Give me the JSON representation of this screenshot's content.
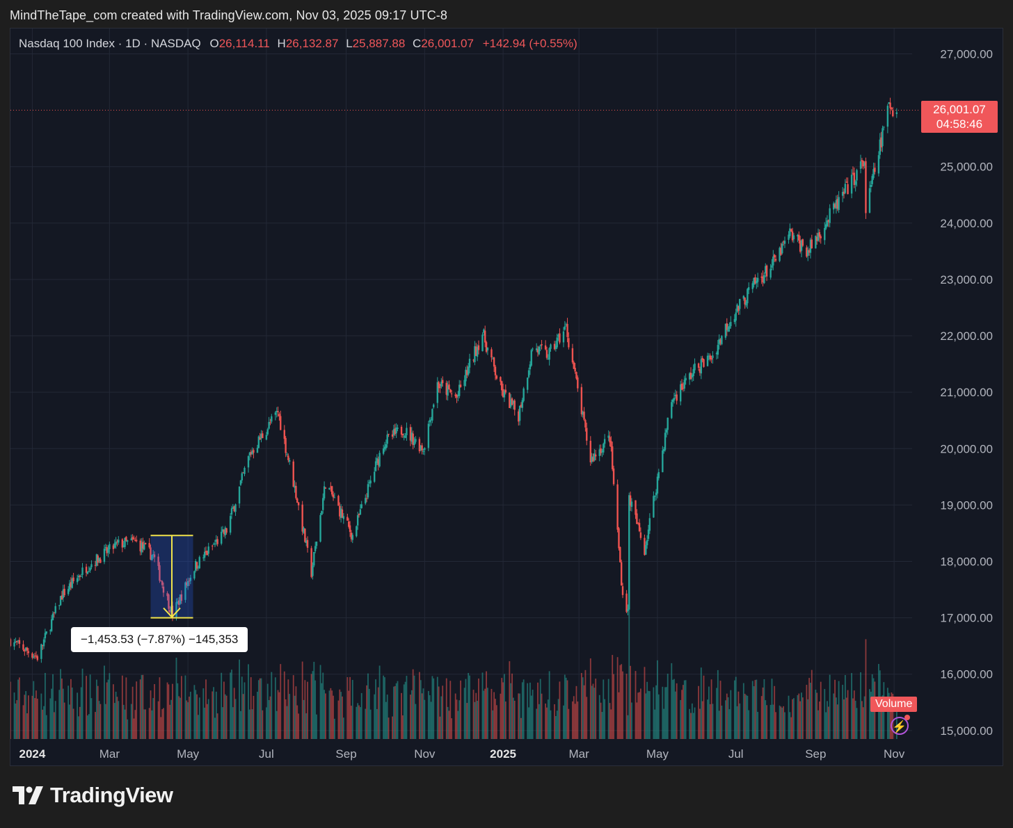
{
  "caption": "MindTheTape_com created with TradingView.com, Nov 03, 2025 09:17 UTC-8",
  "legend": {
    "symbol": "Nasdaq 100 Index · 1D · NASDAQ",
    "open_label": "O",
    "open": "26,114.11",
    "high_label": "H",
    "high": "26,132.87",
    "low_label": "L",
    "low": "25,887.88",
    "close_label": "C",
    "close": "26,001.07",
    "change": "+142.94 (+0.55%)"
  },
  "price_tag": {
    "price": "26,001.07",
    "countdown": "04:58:46"
  },
  "measure_label": "−1,453.53 (−7.87%) −145,353",
  "volume_tag": "Volume",
  "logo_text": "TradingView",
  "colors": {
    "up": "#26a69a",
    "down": "#ef5350",
    "background": "#141823",
    "measure": "#f2e44b"
  },
  "chart_data": {
    "type": "candlestick",
    "current_price": 26001.07,
    "y_ticks": [
      "27,000.00",
      "25,000.00",
      "24,000.00",
      "23,000.00",
      "22,000.00",
      "21,000.00",
      "20,000.00",
      "19,000.00",
      "18,000.00",
      "17,000.00",
      "16,000.00",
      "15,000.00"
    ],
    "y_values": [
      27000,
      25000,
      24000,
      23000,
      22000,
      21000,
      20000,
      19000,
      18000,
      17000,
      16000,
      15000
    ],
    "x_ticks": [
      {
        "label": "2024",
        "date": "2024-01-01",
        "bold": true
      },
      {
        "label": "Mar",
        "date": "2024-03-01",
        "bold": false
      },
      {
        "label": "May",
        "date": "2024-05-01",
        "bold": false
      },
      {
        "label": "Jul",
        "date": "2024-07-01",
        "bold": false
      },
      {
        "label": "Sep",
        "date": "2024-09-01",
        "bold": false
      },
      {
        "label": "Nov",
        "date": "2024-11-01",
        "bold": false
      },
      {
        "label": "2025",
        "date": "2025-01-01",
        "bold": true
      },
      {
        "label": "Mar",
        "date": "2025-03-01",
        "bold": false
      },
      {
        "label": "May",
        "date": "2025-05-01",
        "bold": false
      },
      {
        "label": "Jul",
        "date": "2025-07-01",
        "bold": false
      },
      {
        "label": "Sep",
        "date": "2025-09-01",
        "bold": false
      },
      {
        "label": "Nov",
        "date": "2025-11-01",
        "bold": false
      }
    ],
    "x_range": [
      "2023-12-15",
      "2025-11-15"
    ],
    "y_range": [
      14850,
      27450
    ],
    "path": [
      [
        "2023-12-15",
        16600
      ],
      [
        "2024-01-05",
        16300
      ],
      [
        "2024-01-24",
        17400
      ],
      [
        "2024-02-12",
        17900
      ],
      [
        "2024-03-07",
        18300
      ],
      [
        "2024-03-21",
        18350
      ],
      [
        "2024-04-04",
        18100
      ],
      [
        "2024-04-19",
        17050
      ],
      [
        "2024-05-06",
        17900
      ],
      [
        "2024-05-31",
        18550
      ],
      [
        "2024-06-18",
        19900
      ],
      [
        "2024-07-10",
        20650
      ],
      [
        "2024-07-24",
        19200
      ],
      [
        "2024-08-05",
        17800
      ],
      [
        "2024-08-16",
        19400
      ],
      [
        "2024-09-06",
        18450
      ],
      [
        "2024-09-30",
        20100
      ],
      [
        "2024-10-15",
        20350
      ],
      [
        "2024-10-31",
        20000
      ],
      [
        "2024-11-11",
        21150
      ],
      [
        "2024-11-26",
        20900
      ],
      [
        "2024-12-16",
        22050
      ],
      [
        "2024-12-31",
        21000
      ],
      [
        "2025-01-13",
        20600
      ],
      [
        "2025-01-24",
        21800
      ],
      [
        "2025-02-05",
        21650
      ],
      [
        "2025-02-19",
        22150
      ],
      [
        "2025-03-10",
        19800
      ],
      [
        "2025-03-25",
        20200
      ],
      [
        "2025-04-04",
        17400
      ],
      [
        "2025-04-08",
        17100
      ],
      [
        "2025-04-09",
        19150
      ],
      [
        "2025-04-21",
        18200
      ],
      [
        "2025-05-12",
        20850
      ],
      [
        "2025-05-30",
        21400
      ],
      [
        "2025-06-13",
        21650
      ],
      [
        "2025-06-24",
        22200
      ],
      [
        "2025-07-15",
        22900
      ],
      [
        "2025-07-31",
        23300
      ],
      [
        "2025-08-12",
        23800
      ],
      [
        "2025-08-26",
        23500
      ],
      [
        "2025-09-17",
        24300
      ],
      [
        "2025-10-09",
        25100
      ],
      [
        "2025-10-10",
        24200
      ],
      [
        "2025-10-28",
        26100
      ],
      [
        "2025-11-03",
        26001
      ]
    ],
    "volume_range": [
      0,
      3000
    ],
    "measure": {
      "start_date": "2024-04-02",
      "end_date": "2024-05-05",
      "high": 18460,
      "low": 17000,
      "change": -1453.53,
      "change_pct": -7.87,
      "volume": -145353
    }
  }
}
